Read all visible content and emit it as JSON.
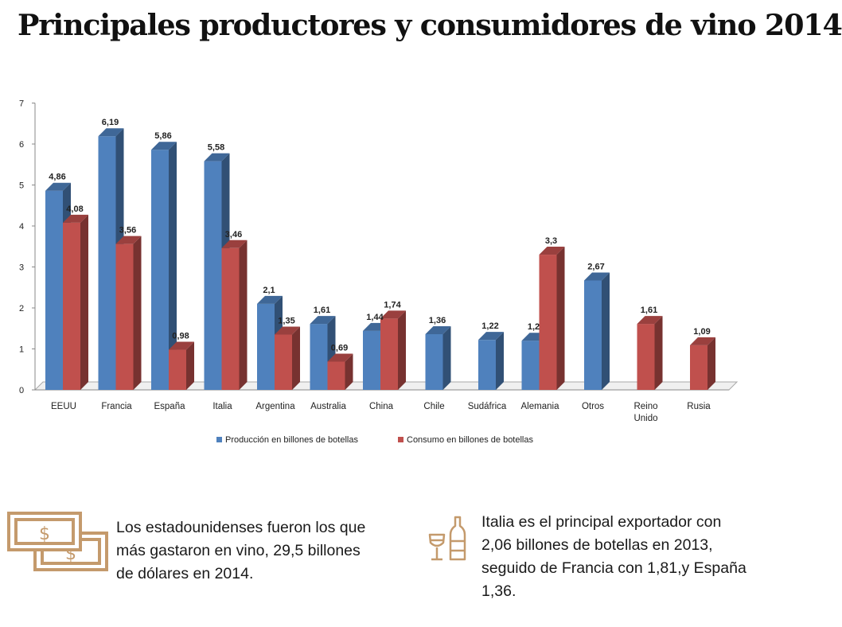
{
  "title": "Principales productores y consumidores de vino 2014",
  "chart_data": {
    "type": "bar",
    "categories": [
      "EEUU",
      "Francia",
      "España",
      "Italia",
      "Argentina",
      "Australia",
      "China",
      "Chile",
      "Sudáfrica",
      "Alemania",
      "Otros",
      "Reino Unido",
      "Rusia"
    ],
    "series": [
      {
        "name": "Producción en billones de botellas",
        "color": "#4f81bd",
        "values": [
          4.86,
          6.19,
          5.86,
          5.58,
          2.1,
          1.61,
          1.44,
          1.36,
          1.22,
          1.2,
          2.67,
          null,
          null
        ],
        "labels": [
          "4,86",
          "6,19",
          "5,86",
          "5,58",
          "2,1",
          "1,61",
          "1,44",
          "1,36",
          "1,22",
          "1,2",
          "2,67",
          "",
          ""
        ]
      },
      {
        "name": "Consumo en billones de botellas",
        "color": "#c0504d",
        "values": [
          4.08,
          3.56,
          0.98,
          3.46,
          1.35,
          0.69,
          1.74,
          null,
          null,
          3.3,
          null,
          1.61,
          1.09
        ],
        "labels": [
          "4,08",
          "3,56",
          "0,98",
          "3,46",
          "1,35",
          "0,69",
          "1,74",
          "",
          "",
          "3,3",
          "",
          "1,61",
          "1,09"
        ]
      }
    ],
    "ylim": [
      0,
      7
    ],
    "yticks": [
      "0",
      "1",
      "2",
      "3",
      "4",
      "5",
      "6",
      "7"
    ],
    "legend_position": "bottom",
    "grid": false
  },
  "facts": [
    {
      "icon": "dollar-bills-icon",
      "text": "Los estadounidenses fueron los que más gastaron en vino, 29,5 billones de dólares en 2014."
    },
    {
      "icon": "wine-glass-bottle-icon",
      "text": "Italia es el principal exportador con 2,06 billones de botellas en 2013, seguido de Francia con 1,81,y España 1,36."
    }
  ],
  "colors": {
    "icon": "#c49a6c"
  }
}
